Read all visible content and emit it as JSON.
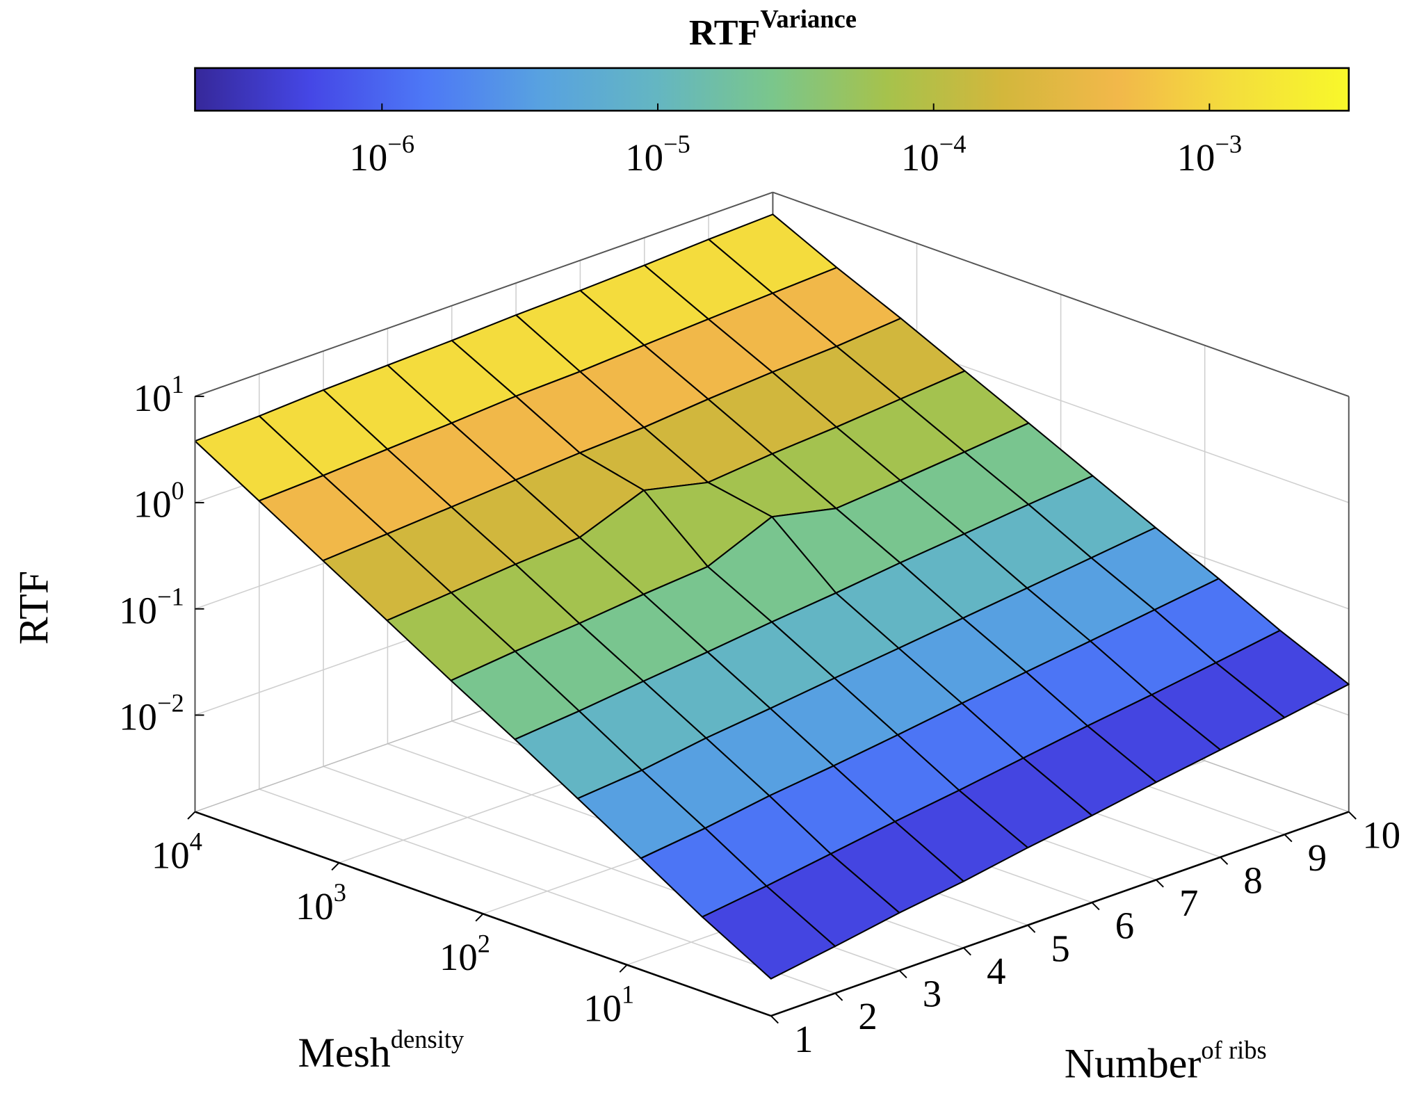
{
  "chart_data": {
    "type": "surface3d",
    "zlabel": "RTF",
    "xlabel": "Number of ribs",
    "ylabel": "Mesh density",
    "x": [
      1,
      2,
      3,
      4,
      5,
      6,
      7,
      8,
      9,
      10
    ],
    "xlim": [
      1,
      10
    ],
    "xticks": [
      1,
      2,
      3,
      4,
      5,
      6,
      7,
      8,
      9,
      10
    ],
    "y": [
      1,
      3,
      8,
      22,
      60,
      167,
      464,
      1292,
      3594,
      10000
    ],
    "ylim": [
      1,
      10000
    ],
    "ylog": true,
    "yticks": [
      {
        "value": 10,
        "label": "10 1"
      },
      {
        "value": 100,
        "label": "10 2"
      },
      {
        "value": 1000,
        "label": "10 3"
      },
      {
        "value": 10000,
        "label": "10 4"
      }
    ],
    "zlim": [
      0.00123,
      10
    ],
    "zlog": true,
    "zticks": [
      {
        "value": 0.01,
        "label": "10 −2"
      },
      {
        "value": 0.1,
        "label": "10 −1"
      },
      {
        "value": 1,
        "label": "10 0"
      },
      {
        "value": 10,
        "label": "10 1"
      }
    ],
    "z": [
      [
        0.00275,
        0.0062,
        0.0138,
        0.031,
        0.069,
        0.151,
        0.34,
        0.76,
        1.7,
        3.8
      ],
      [
        0.0034,
        0.0074,
        0.0162,
        0.035,
        0.078,
        0.174,
        0.38,
        0.83,
        1.8,
        4.0
      ],
      [
        0.0043,
        0.0091,
        0.02,
        0.043,
        0.091,
        0.195,
        0.43,
        0.91,
        1.95,
        4.3
      ],
      [
        0.0052,
        0.0112,
        0.0234,
        0.05,
        0.105,
        0.224,
        0.47,
        1.0,
        2.1,
        4.5
      ],
      [
        0.0066,
        0.0135,
        0.028,
        0.059,
        0.123,
        0.25,
        0.8,
        1.1,
        2.3,
        4.7
      ],
      [
        0.0081,
        0.0166,
        0.034,
        0.069,
        0.141,
        0.45,
        0.58,
        1.17,
        2.4,
        5.0
      ],
      [
        0.0102,
        0.0204,
        0.041,
        0.081,
        0.166,
        0.33,
        0.66,
        1.32,
        2.6,
        5.2
      ],
      [
        0.0126,
        0.0245,
        0.049,
        0.095,
        0.19,
        0.37,
        0.72,
        1.45,
        2.8,
        5.5
      ],
      [
        0.0155,
        0.03,
        0.059,
        0.112,
        0.22,
        0.42,
        0.81,
        1.55,
        3.0,
        5.9
      ],
      [
        0.0195,
        0.037,
        0.071,
        0.132,
        0.25,
        0.48,
        0.91,
        1.74,
        3.2,
        6.2
      ]
    ],
    "variance": [
      3.2e-07,
      8.3e-07,
      2.2e-06,
      5.8e-06,
      1.5e-05,
      4e-05,
      0.000105,
      0.00028,
      0.00072,
      0.0019
    ],
    "grid": true,
    "colorbar": {
      "label": "RTF Variance",
      "lim": [
        2.1e-07,
        0.0032
      ],
      "log": true,
      "ticks": [
        {
          "value": 1e-06,
          "label": "10 −6"
        },
        {
          "value": 1e-05,
          "label": "10 −5"
        },
        {
          "value": 0.0001,
          "label": "10 −4"
        },
        {
          "value": 0.001,
          "label": "10 −3"
        }
      ],
      "colormap": [
        "#36289a",
        "#4547e6",
        "#4d78f6",
        "#58a2e0",
        "#64b6c2",
        "#7ac68c",
        "#a6c24c",
        "#d3b73c",
        "#f2b84a",
        "#f4de3c",
        "#f8f82a"
      ]
    }
  }
}
